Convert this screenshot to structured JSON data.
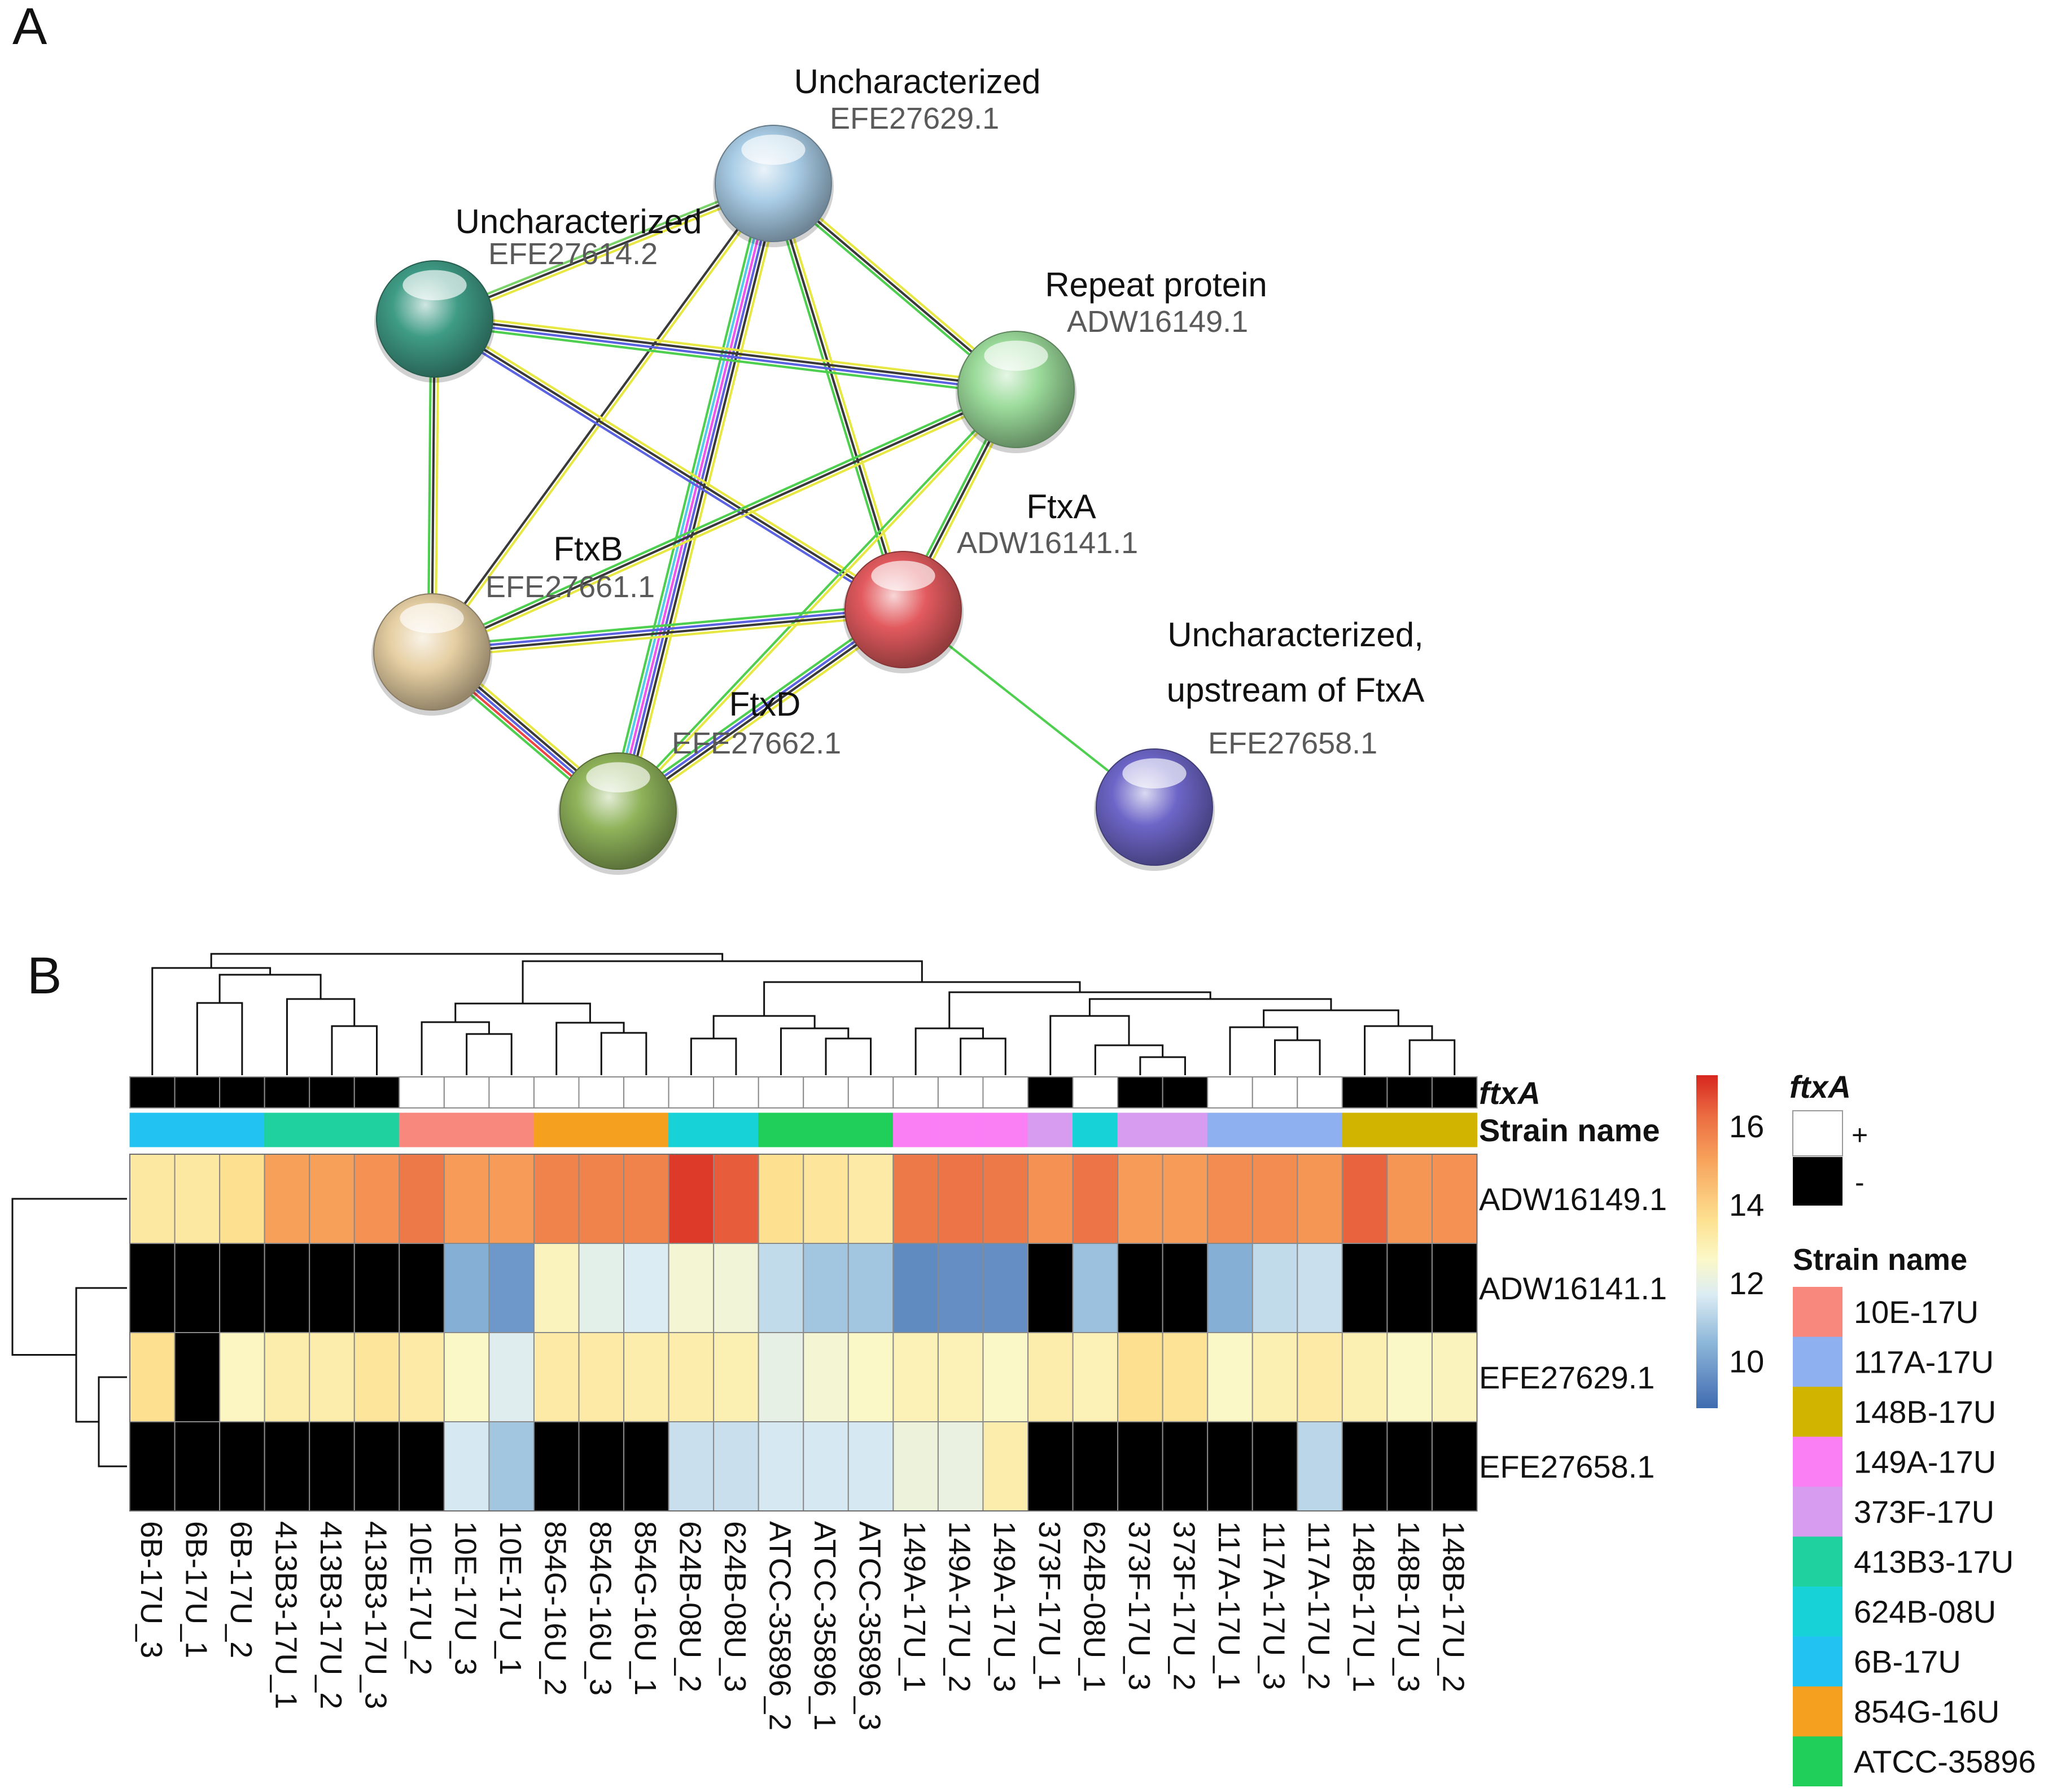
{
  "panel_a": {
    "label": "A",
    "nodes": [
      {
        "id": "efe27629",
        "name": "Uncharacterized",
        "accession": "EFE27629.1",
        "color": "#a9cde6"
      },
      {
        "id": "efe27614",
        "name": "Uncharacterized",
        "accession": "EFE27614.2",
        "color": "#3f9c86"
      },
      {
        "id": "adw16149",
        "name": "Repeat protein",
        "accession": "ADW16149.1",
        "color": "#9bdb9a"
      },
      {
        "id": "adw16141",
        "name": "FtxA",
        "accession": "ADW16141.1",
        "color": "#e25a5e"
      },
      {
        "id": "efe27661",
        "name": "FtxB",
        "accession": "EFE27661.1",
        "color": "#e6cfa3"
      },
      {
        "id": "efe27662",
        "name": "FtxD",
        "accession": "EFE27662.1",
        "color": "#8fb35a"
      },
      {
        "id": "efe27658",
        "name_lines": [
          "Uncharacterized,",
          "upstream of FtxA"
        ],
        "accession": "EFE27658.1",
        "color": "#6d66c8"
      }
    ],
    "edges": [
      {
        "from": "efe27629",
        "to": "efe27614",
        "colors": [
          "#e8e845",
          "#3a3a3a",
          "#7bd46a"
        ]
      },
      {
        "from": "efe27629",
        "to": "adw16149",
        "colors": [
          "#e8e845",
          "#3a3a3a",
          "#4fcf4f"
        ]
      },
      {
        "from": "efe27629",
        "to": "adw16141",
        "colors": [
          "#e8e845",
          "#3a3a3a",
          "#4fcf4f"
        ]
      },
      {
        "from": "efe27629",
        "to": "efe27661",
        "colors": [
          "#e8e845",
          "#3a3a3a"
        ]
      },
      {
        "from": "efe27629",
        "to": "efe27662",
        "colors": [
          "#e8e845",
          "#3a3a3a",
          "#5b63e0",
          "#ee55ee",
          "#55c9ee",
          "#4fcf4f"
        ]
      },
      {
        "from": "efe27614",
        "to": "adw16149",
        "colors": [
          "#e8e845",
          "#3a3a3a",
          "#5b63e0",
          "#4fcf4f"
        ]
      },
      {
        "from": "efe27614",
        "to": "adw16141",
        "colors": [
          "#e8e845",
          "#3a3a3a",
          "#5b63e0"
        ]
      },
      {
        "from": "efe27614",
        "to": "efe27661",
        "colors": [
          "#e8e845",
          "#3a3a3a",
          "#4fcf4f"
        ]
      },
      {
        "from": "adw16149",
        "to": "adw16141",
        "colors": [
          "#e8e845",
          "#3a3a3a",
          "#4fcf4f"
        ]
      },
      {
        "from": "adw16149",
        "to": "efe27661",
        "colors": [
          "#e8e845",
          "#3a3a3a",
          "#4fcf4f"
        ]
      },
      {
        "from": "adw16149",
        "to": "efe27662",
        "colors": [
          "#e8e845",
          "#4fcf4f"
        ]
      },
      {
        "from": "adw16141",
        "to": "efe27661",
        "colors": [
          "#e8e845",
          "#3a3a3a",
          "#5b63e0",
          "#4fcf4f"
        ]
      },
      {
        "from": "adw16141",
        "to": "efe27662",
        "colors": [
          "#e8e845",
          "#3a3a3a",
          "#5b63e0",
          "#4fcf4f"
        ]
      },
      {
        "from": "adw16141",
        "to": "efe27658",
        "colors": [
          "#4fcf4f"
        ]
      },
      {
        "from": "efe27661",
        "to": "efe27662",
        "colors": [
          "#e8e845",
          "#3a3a3a",
          "#5b63e0",
          "#ee4444",
          "#4fcf4f"
        ]
      }
    ]
  },
  "chart_data": {
    "type": "heatmap",
    "panel_label": "B",
    "columns": [
      "6B-17U_3",
      "6B-17U_1",
      "6B-17U_2",
      "413B3-17U_1",
      "413B3-17U_2",
      "413B3-17U_3",
      "10E-17U_2",
      "10E-17U_3",
      "10E-17U_1",
      "854G-16U_2",
      "854G-16U_3",
      "854G-16U_1",
      "624B-08U_2",
      "624B-08U_3",
      "ATCC-35896_2",
      "ATCC-35896_1",
      "ATCC-35896_3",
      "149A-17U_1",
      "149A-17U_2",
      "149A-17U_3",
      "373F-17U_1",
      "624B-08U_1",
      "373F-17U_3",
      "373F-17U_2",
      "117A-17U_1",
      "117A-17U_3",
      "117A-17U_2",
      "148B-17U_1",
      "148B-17U_3",
      "148B-17U_2"
    ],
    "rows": [
      "ADW16149.1",
      "ADW16141.1",
      "EFE27629.1",
      "EFE27658.1"
    ],
    "values": [
      [
        13.3,
        13.3,
        13.6,
        15.2,
        15.2,
        15.5,
        16.0,
        15.3,
        15.3,
        15.8,
        15.8,
        15.8,
        17.0,
        16.5,
        13.6,
        13.4,
        13.2,
        16.0,
        16.1,
        16.0,
        15.5,
        16.1,
        15.3,
        15.3,
        15.6,
        15.6,
        15.4,
        16.4,
        15.4,
        15.5
      ],
      [
        null,
        null,
        null,
        null,
        null,
        null,
        null,
        10.3,
        9.8,
        12.8,
        11.9,
        11.7,
        12.4,
        12.3,
        11.3,
        10.8,
        10.8,
        9.5,
        9.6,
        9.6,
        null,
        10.7,
        null,
        null,
        10.3,
        11.3,
        11.4,
        null,
        null,
        null
      ],
      [
        13.6,
        null,
        12.7,
        13.1,
        13.1,
        13.4,
        13.2,
        12.6,
        11.8,
        13.2,
        13.2,
        13.1,
        13.1,
        13.0,
        12.0,
        12.4,
        12.6,
        12.9,
        12.9,
        12.6,
        13.1,
        12.9,
        13.6,
        13.5,
        12.6,
        13.0,
        13.2,
        13.0,
        12.6,
        12.8
      ],
      [
        null,
        null,
        null,
        null,
        null,
        null,
        null,
        11.6,
        10.8,
        null,
        null,
        null,
        11.4,
        11.4,
        11.6,
        11.6,
        11.6,
        12.2,
        12.1,
        13.1,
        null,
        null,
        null,
        null,
        null,
        null,
        11.2,
        null,
        null,
        null
      ]
    ],
    "missing_color": "#000000",
    "annotation_rows": [
      {
        "label": "ftxA",
        "values": [
          "-",
          "-",
          "-",
          "-",
          "-",
          "-",
          "+",
          "+",
          "+",
          "+",
          "+",
          "+",
          "+",
          "+",
          "+",
          "+",
          "+",
          "+",
          "+",
          "+",
          "-",
          "+",
          "-",
          "-",
          "+",
          "+",
          "+",
          "-",
          "-",
          "-"
        ]
      },
      {
        "label": "Strain name",
        "values": [
          "6B-17U",
          "6B-17U",
          "6B-17U",
          "413B3-17U",
          "413B3-17U",
          "413B3-17U",
          "10E-17U",
          "10E-17U",
          "10E-17U",
          "854G-16U",
          "854G-16U",
          "854G-16U",
          "624B-08U",
          "624B-08U",
          "ATCC-35896",
          "ATCC-35896",
          "ATCC-35896",
          "149A-17U",
          "149A-17U",
          "149A-17U",
          "373F-17U",
          "624B-08U",
          "373F-17U",
          "373F-17U",
          "117A-17U",
          "117A-17U",
          "117A-17U",
          "148B-17U",
          "148B-17U",
          "148B-17U"
        ]
      }
    ],
    "ftxA_colors": {
      "+": "#ffffff",
      "-": "#000000"
    },
    "strain_colors": {
      "10E-17U": "#f8877d",
      "117A-17U": "#8fb0f0",
      "148B-17U": "#d0b400",
      "149A-17U": "#fa7ff5",
      "373F-17U": "#d79cf0",
      "413B3-17U": "#1fd19f",
      "624B-08U": "#17d3d8",
      "6B-17U": "#22c3f2",
      "854G-16U": "#f5a11f",
      "ATCC-35896": "#1fcf5a"
    },
    "color_scale": {
      "range": [
        8.8,
        17.3
      ],
      "ticks": [
        10,
        12,
        14,
        16
      ],
      "stops": [
        {
          "v": 8.8,
          "c": "#3f6bb0"
        },
        {
          "v": 10.5,
          "c": "#8fb8da"
        },
        {
          "v": 11.7,
          "c": "#dcecf3"
        },
        {
          "v": 12.6,
          "c": "#fbf8c8"
        },
        {
          "v": 13.6,
          "c": "#fde190"
        },
        {
          "v": 15.2,
          "c": "#f7a05a"
        },
        {
          "v": 16.3,
          "c": "#eb6a41"
        },
        {
          "v": 17.3,
          "c": "#d7261f"
        }
      ]
    },
    "legend": {
      "ftxA_title": "ftxA",
      "plus": "+",
      "minus": "-",
      "strain_title": "Strain name",
      "strains": [
        "10E-17U",
        "117A-17U",
        "148B-17U",
        "149A-17U",
        "373F-17U",
        "413B3-17U",
        "624B-08U",
        "6B-17U",
        "854G-16U",
        "ATCC-35896"
      ]
    }
  }
}
